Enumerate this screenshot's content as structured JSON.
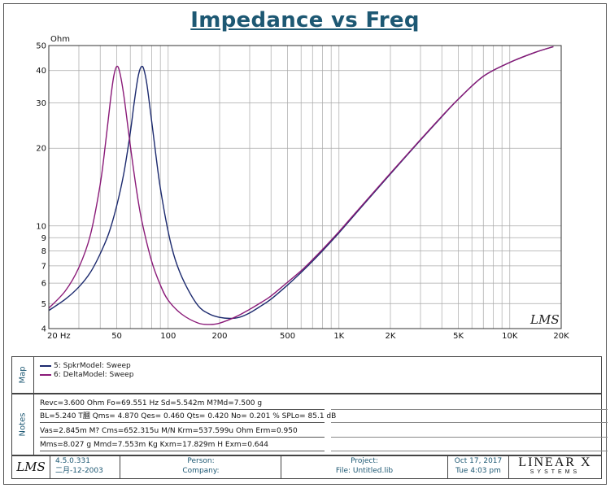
{
  "chart_data": {
    "type": "line",
    "title": "Impedance vs Freq",
    "ylabel": "Ohm",
    "xscale": "log",
    "yscale": "log",
    "xlim": [
      20,
      20000
    ],
    "ylim": [
      4,
      50
    ],
    "grid": true,
    "legend": "Map panel below chart",
    "x_ticks": [
      {
        "value": 20,
        "label": "20  Hz"
      },
      {
        "value": 50,
        "label": "50"
      },
      {
        "value": 100,
        "label": "100"
      },
      {
        "value": 200,
        "label": "200"
      },
      {
        "value": 500,
        "label": "500"
      },
      {
        "value": 1000,
        "label": "1K"
      },
      {
        "value": 2000,
        "label": "2K"
      },
      {
        "value": 5000,
        "label": "5K"
      },
      {
        "value": 10000,
        "label": "10K"
      },
      {
        "value": 20000,
        "label": "20K"
      }
    ],
    "y_ticks": [
      {
        "value": 50,
        "label": "50"
      },
      {
        "value": 40,
        "label": "40"
      },
      {
        "value": 30,
        "label": "30"
      },
      {
        "value": 20,
        "label": "20"
      },
      {
        "value": 10,
        "label": "10"
      },
      {
        "value": 9,
        "label": "9"
      },
      {
        "value": 8,
        "label": "8"
      },
      {
        "value": 7,
        "label": "7"
      },
      {
        "value": 6,
        "label": "6"
      },
      {
        "value": 5,
        "label": "5"
      },
      {
        "value": 4,
        "label": "4"
      }
    ],
    "series": [
      {
        "name": "5: SpkrModel: Sweep",
        "color": "#1c2a6e",
        "x": [
          20,
          25,
          30,
          35,
          40,
          45,
          50,
          55,
          60,
          63,
          66,
          68,
          70,
          72,
          75,
          80,
          85,
          90,
          100,
          110,
          125,
          150,
          175,
          200,
          230,
          260,
          300,
          350,
          400,
          500,
          600,
          700,
          800,
          1000,
          1200,
          1500,
          2000,
          3000,
          4000,
          5000,
          7000,
          10000,
          14000,
          18000
        ],
        "y": [
          4.7,
          5.2,
          5.8,
          6.6,
          7.8,
          9.4,
          12.0,
          16.0,
          23.0,
          29.5,
          36.5,
          40.0,
          41.5,
          40.5,
          35.5,
          25.5,
          18.5,
          14.0,
          9.5,
          7.4,
          6.0,
          4.9,
          4.55,
          4.42,
          4.38,
          4.42,
          4.6,
          4.9,
          5.2,
          5.9,
          6.6,
          7.3,
          8.0,
          9.4,
          10.8,
          12.8,
          15.9,
          21.5,
          26.5,
          31.0,
          38.0,
          43.0,
          47.0,
          49.5
        ]
      },
      {
        "name": "6: DeltaModel: Sweep",
        "color": "#8a1a78",
        "x": [
          20,
          25,
          30,
          35,
          40,
          43,
          46,
          48,
          50,
          52,
          55,
          60,
          65,
          70,
          80,
          90,
          100,
          120,
          150,
          175,
          200,
          250,
          300,
          350,
          400,
          500,
          600,
          700,
          800,
          1000,
          1200,
          1500,
          2000,
          3000,
          4000,
          5000,
          7000,
          10000,
          14000,
          18000
        ],
        "y": [
          4.8,
          5.6,
          6.9,
          9.2,
          14.5,
          21.0,
          31.0,
          38.0,
          41.5,
          39.5,
          32.0,
          20.5,
          14.0,
          10.5,
          7.3,
          5.9,
          5.15,
          4.55,
          4.2,
          4.15,
          4.2,
          4.45,
          4.75,
          5.05,
          5.35,
          6.05,
          6.7,
          7.4,
          8.1,
          9.5,
          10.9,
          12.9,
          16.0,
          21.6,
          26.6,
          31.0,
          38.0,
          43.0,
          47.0,
          49.5
        ]
      }
    ]
  },
  "header": {
    "title": "Impedance vs Freq",
    "y_unit": "Ohm"
  },
  "watermark": "LMS",
  "map": {
    "label": "Map",
    "entries": [
      {
        "label": "5: SpkrModel: Sweep"
      },
      {
        "label": "6: DeltaModel: Sweep"
      }
    ]
  },
  "notes": {
    "label": "Notes",
    "rows": [
      "Revc=3.600 Ohm  Fo=69.551 Hz  Sd=5.542m M?Md=7.500 g",
      "BL=5.240 T膕  Qms= 4.870  Qes= 0.460  Qts= 0.420  No= 0.201 %  SPLo= 85.1 dB",
      "Vas=2.845m M? Cms=652.315u M/N  Krm=537.599u Ohm  Erm=0.950",
      "Mms=8.027 g  Mmd=7.553m Kg  Kxm=17.829m H  Exm=0.644"
    ]
  },
  "footer": {
    "logo": "LMS",
    "version": "4.5.0.331",
    "date_cn": "二月-12-2003",
    "person_label": "Person:",
    "company_label": "Company:",
    "project_label": "Project:",
    "file_label": "File: Untitled.lib",
    "date": "Oct 17, 2017",
    "time": "Tue  4:03 pm",
    "brand_main": "LINEAR X",
    "brand_sub": "SYSTEMS"
  }
}
